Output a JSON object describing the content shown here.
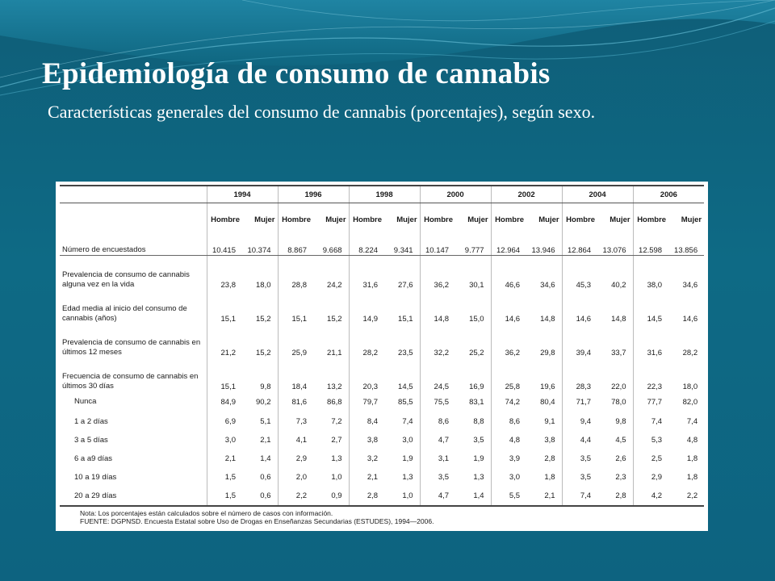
{
  "slide": {
    "title": "Epidemiología de consumo de cannabis",
    "subtitle": "Características generales del consumo de cannabis (porcentajes), según sexo."
  },
  "table": {
    "years": [
      "1994",
      "1996",
      "1998",
      "2000",
      "2002",
      "2004",
      "2006"
    ],
    "sex_labels": [
      "Hombre",
      "Mujer"
    ],
    "rows": [
      {
        "label": "Número de encuestados",
        "kind": "count",
        "values": [
          "10.415",
          "10.374",
          "8.867",
          "9.668",
          "8.224",
          "9.341",
          "10.147",
          "9.777",
          "12.964",
          "13.946",
          "12.864",
          "13.076",
          "12.598",
          "13.856"
        ]
      },
      {
        "label": "Prevalencia de consumo de cannabis alguna vez en la vida",
        "kind": "tall",
        "values": [
          "23,8",
          "18,0",
          "28,8",
          "24,2",
          "31,6",
          "27,6",
          "36,2",
          "30,1",
          "46,6",
          "34,6",
          "45,3",
          "40,2",
          "38,0",
          "34,6"
        ]
      },
      {
        "label": "Edad media al inicio del consumo de cannabis (años)",
        "kind": "tall",
        "values": [
          "15,1",
          "15,2",
          "15,1",
          "15,2",
          "14,9",
          "15,1",
          "14,8",
          "15,0",
          "14,6",
          "14,8",
          "14,6",
          "14,8",
          "14,5",
          "14,6"
        ]
      },
      {
        "label": "Prevalencia de consumo de cannabis en últimos 12 meses",
        "kind": "tall",
        "values": [
          "21,2",
          "15,2",
          "25,9",
          "21,1",
          "28,2",
          "23,5",
          "32,2",
          "25,2",
          "36,2",
          "29,8",
          "39,4",
          "33,7",
          "31,6",
          "28,2"
        ]
      },
      {
        "label": "Frecuencia de consumo de cannabis en últimos 30 días",
        "kind": "tall",
        "values": [
          "15,1",
          "9,8",
          "18,4",
          "13,2",
          "20,3",
          "14,5",
          "24,5",
          "16,9",
          "25,8",
          "19,6",
          "28,3",
          "22,0",
          "22,3",
          "18,0"
        ]
      },
      {
        "label": "Nunca",
        "kind": "sub-first",
        "values": [
          "84,9",
          "90,2",
          "81,6",
          "86,8",
          "79,7",
          "85,5",
          "75,5",
          "83,1",
          "74,2",
          "80,4",
          "71,7",
          "78,0",
          "77,7",
          "82,0"
        ]
      },
      {
        "label": "1 a 2 días",
        "kind": "sub",
        "values": [
          "6,9",
          "5,1",
          "7,3",
          "7,2",
          "8,4",
          "7,4",
          "8,6",
          "8,8",
          "8,6",
          "9,1",
          "9,4",
          "9,8",
          "7,4",
          "7,4"
        ]
      },
      {
        "label": "3 a 5 días",
        "kind": "sub",
        "values": [
          "3,0",
          "2,1",
          "4,1",
          "2,7",
          "3,8",
          "3,0",
          "4,7",
          "3,5",
          "4,8",
          "3,8",
          "4,4",
          "4,5",
          "5,3",
          "4,8"
        ]
      },
      {
        "label": "6 a a9 días",
        "kind": "sub",
        "values": [
          "2,1",
          "1,4",
          "2,9",
          "1,3",
          "3,2",
          "1,9",
          "3,1",
          "1,9",
          "3,9",
          "2,8",
          "3,5",
          "2,6",
          "2,5",
          "1,8"
        ]
      },
      {
        "label": "10 a 19 días",
        "kind": "sub",
        "values": [
          "1,5",
          "0,6",
          "2,0",
          "1,0",
          "2,1",
          "1,3",
          "3,5",
          "1,3",
          "3,0",
          "1,8",
          "3,5",
          "2,3",
          "2,9",
          "1,8"
        ]
      },
      {
        "label": "20 a 29 días",
        "kind": "sub-last",
        "values": [
          "1,5",
          "0,6",
          "2,2",
          "0,9",
          "2,8",
          "1,0",
          "4,7",
          "1,4",
          "5,5",
          "2,1",
          "7,4",
          "2,8",
          "4,2",
          "2,2"
        ]
      }
    ],
    "note_line1": "Nota: Los porcentajes están calculados sobre el número de casos con información.",
    "note_line2": "FUENTE: DGPNSD. Encuesta Estatal sobre Uso de Drogas en Enseñanzas Secundarias (ESTUDES), 1994—2006."
  }
}
